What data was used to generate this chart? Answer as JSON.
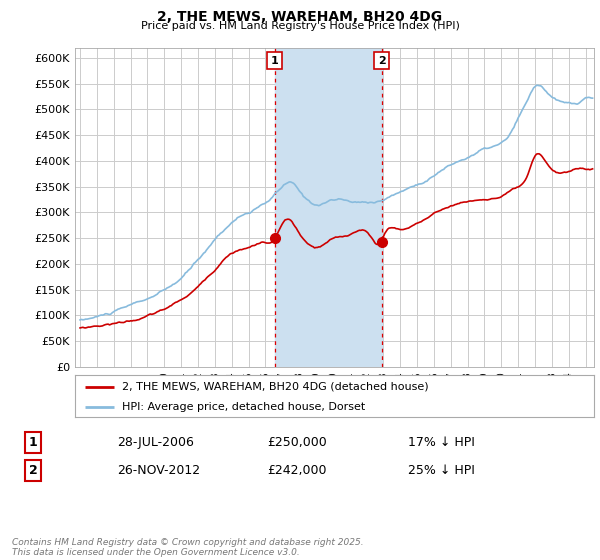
{
  "title": "2, THE MEWS, WAREHAM, BH20 4DG",
  "subtitle": "Price paid vs. HM Land Registry's House Price Index (HPI)",
  "background_color": "#ffffff",
  "plot_bg_color": "#ffffff",
  "grid_color": "#cccccc",
  "hpi_color": "#88bbdd",
  "price_color": "#cc0000",
  "shaded_color": "#cce0f0",
  "ylim": [
    0,
    620000
  ],
  "yticks": [
    0,
    50000,
    100000,
    150000,
    200000,
    250000,
    300000,
    350000,
    400000,
    450000,
    500000,
    550000,
    600000
  ],
  "purchase1_date": 2006.55,
  "purchase1_price": 250000,
  "purchase2_date": 2012.9,
  "purchase2_price": 242000,
  "legend_label_price": "2, THE MEWS, WAREHAM, BH20 4DG (detached house)",
  "legend_label_hpi": "HPI: Average price, detached house, Dorset",
  "table_row1": [
    "1",
    "28-JUL-2006",
    "£250,000",
    "17% ↓ HPI"
  ],
  "table_row2": [
    "2",
    "26-NOV-2012",
    "£242,000",
    "25% ↓ HPI"
  ],
  "copyright_text": "Contains HM Land Registry data © Crown copyright and database right 2025.\nThis data is licensed under the Open Government Licence v3.0.",
  "xlim_left": 1994.7,
  "xlim_right": 2025.5
}
